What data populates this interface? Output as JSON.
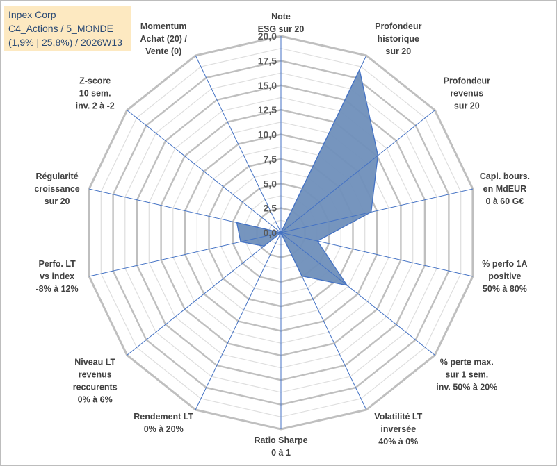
{
  "info": {
    "line1": "Inpex Corp",
    "line2": "C4_Actions / 5_MONDE",
    "line3": "(1,9% | 25,8%) / 2026W13"
  },
  "colors": {
    "fill": "#6f8fba",
    "stroke": "#4472c4",
    "grid": "#bfbfbf",
    "spoke": "#4472c4",
    "box": "#fde9c1"
  },
  "chart_data": {
    "type": "radar",
    "rmax": 20,
    "tick_labels": [
      "0,0",
      "2,5",
      "5,0",
      "7,5",
      "10,0",
      "12,5",
      "15,0",
      "17,5",
      "20,0"
    ],
    "axes": [
      {
        "label": [
          "Note",
          "ESG sur 20"
        ],
        "value": 0
      },
      {
        "label": [
          "Profondeur",
          "historique",
          "sur 20"
        ],
        "value": 18.4
      },
      {
        "label": [
          "Profondeur",
          "revenus",
          "sur 20"
        ],
        "value": 12.6
      },
      {
        "label": [
          "Capi. bours.",
          "en MdEUR",
          "0 à 60 G€"
        ],
        "value": 9.4
      },
      {
        "label": [
          "% perfo 1A",
          "positive",
          "50% à 80%"
        ],
        "value": 3.8
      },
      {
        "label": [
          "% perte max.",
          "sur 1 sem.",
          "inv. 50% à 20%"
        ],
        "value": 8.6
      },
      {
        "label": [
          "Volatilité LT",
          "inversée",
          "40% à 0%"
        ],
        "value": 4.9
      },
      {
        "label": [
          "Ratio Sharpe",
          "0 à 1"
        ],
        "value": 0
      },
      {
        "label": [
          "Rendement LT",
          "0% à 20%"
        ],
        "value": 0
      },
      {
        "label": [
          "Niveau LT",
          "revenus",
          "reccurents",
          "0% à 6%"
        ],
        "value": 2.2
      },
      {
        "label": [
          "Perfo. LT",
          "vs index",
          "-8% à 12%"
        ],
        "value": 4.2
      },
      {
        "label": [
          "Régularité",
          "croissance",
          "sur 20"
        ],
        "value": 4.6
      },
      {
        "label": [
          "Z-score",
          "10 sem.",
          "inv. 2 à -2"
        ],
        "value": 0
      },
      {
        "label": [
          "Momentum",
          "Achat (20) /",
          "Vente (0)"
        ],
        "value": 0
      }
    ]
  }
}
